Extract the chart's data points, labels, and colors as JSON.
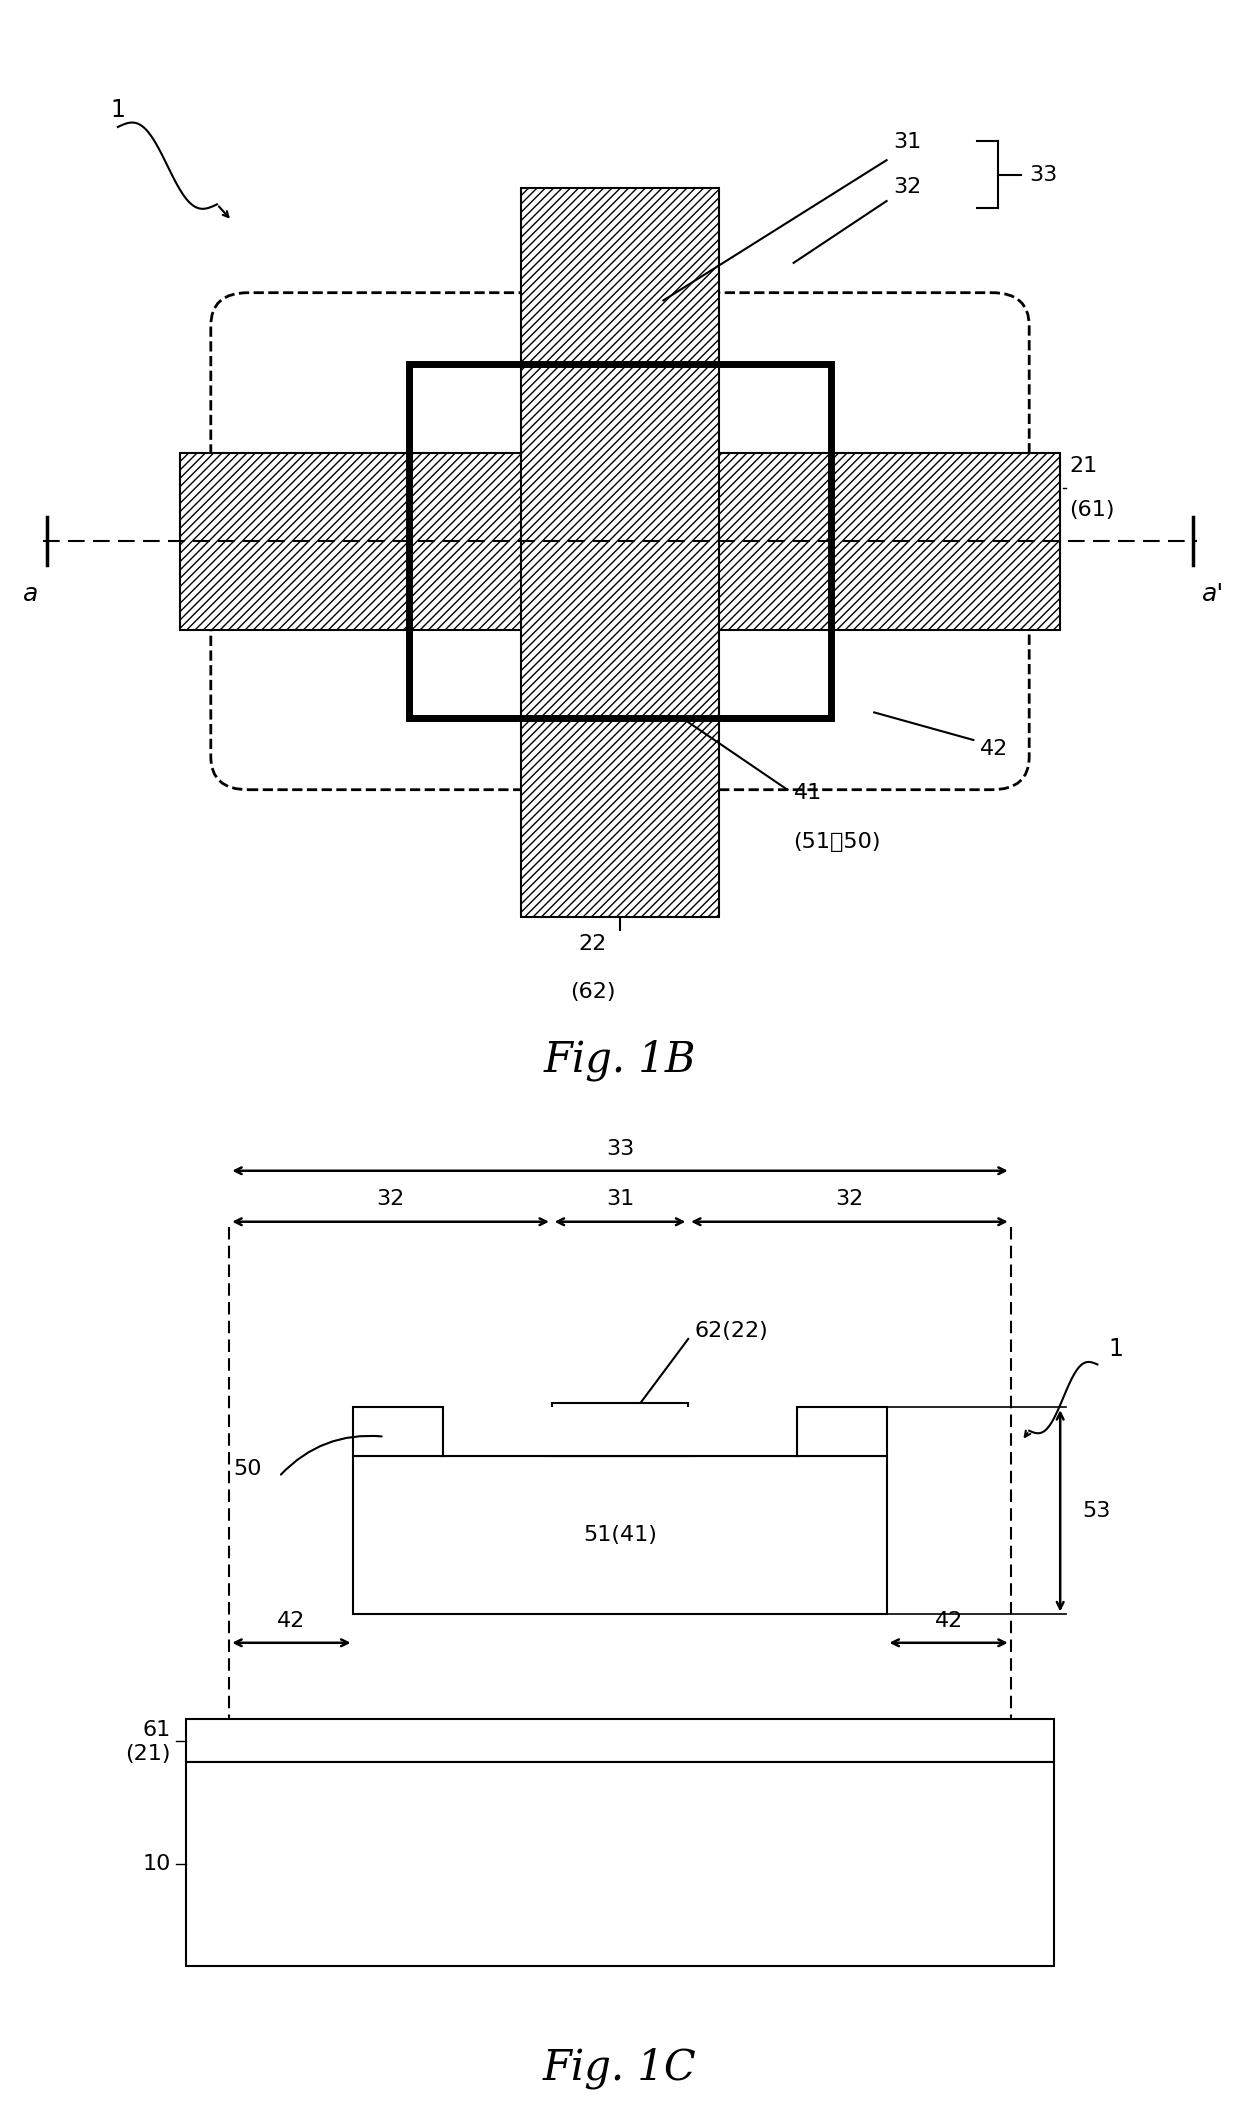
{
  "fig_width": 12.4,
  "fig_height": 21.24,
  "bg_color": "#ffffff",
  "line_color": "#000000",
  "fig1b_title": "Fig. 1B",
  "fig1c_title": "Fig. 1C",
  "label_fontsize": 16,
  "title_fontsize": 30
}
